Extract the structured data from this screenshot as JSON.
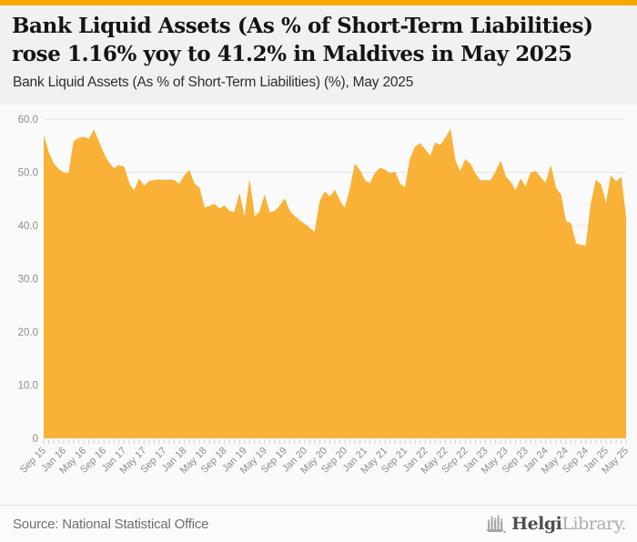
{
  "header": {
    "title_line1": "Bank Liquid Assets (As % of Short-Term Liabilities)",
    "title_line2": "rose 1.16% yoy to 41.2% in Maldives in May 2025",
    "subtitle": "Bank Liquid Assets (As % of Short-Term Liabilities) (%), May 2025"
  },
  "footer": {
    "source": "Source: National Statistical Office",
    "logo_bold": "Helgi",
    "logo_light": "Library."
  },
  "colors": {
    "accent_bar": "#F7A800",
    "area_fill": "#F9B237",
    "area_stroke": "#F3A81F",
    "grid": "#E5E5E5",
    "axis_text": "#8C8C8C",
    "tick_mark": "#C9D2DE",
    "plot_bg": "#FAFAFA"
  },
  "chart_data": {
    "type": "area",
    "title": "Bank Liquid Assets (As % of Short-Term Liabilities) (%), May 2025",
    "xlabel": "",
    "ylabel": "",
    "unit": "%",
    "grid": true,
    "legend": "none",
    "freq": "monthly",
    "x_start": "Sep 2015",
    "x_end": "May 2025",
    "ylim": [
      0,
      60
    ],
    "yticks": [
      0,
      10,
      20,
      30,
      40,
      50,
      60
    ],
    "ytick_labels": [
      "0",
      "10.0",
      "20.0",
      "30.0",
      "40.0",
      "50.0",
      "60.0"
    ],
    "x_major_label_every_n_months": 4,
    "x_major_labels": [
      "Sep 15",
      "Jan 16",
      "May 16",
      "Sep 16",
      "Jan 17",
      "May 17",
      "Sep 17",
      "Jan 18",
      "May 18",
      "Sep 18",
      "Jan 19",
      "May 19",
      "Sep 19",
      "Jan 20",
      "May 20",
      "Sep 20",
      "Jan 21",
      "May 21",
      "Sep 21",
      "Jan 22",
      "May 22",
      "Sep 22",
      "Jan 23",
      "May 23",
      "Sep 23",
      "Jan 24",
      "May 24",
      "Sep 24",
      "Jan 25",
      "May 25"
    ],
    "latest_point": {
      "label": "May 25",
      "value": 41.2
    },
    "yoy_change_pct": 1.16,
    "values": [
      56.9,
      53.6,
      51.6,
      50.5,
      49.9,
      49.8,
      55.8,
      56.4,
      56.6,
      56.2,
      57.9,
      55.7,
      53.4,
      51.8,
      50.7,
      51.3,
      51.0,
      47.9,
      46.4,
      48.7,
      47.4,
      48.3,
      48.5,
      48.6,
      48.5,
      48.6,
      48.5,
      47.7,
      49.3,
      50.4,
      47.8,
      47.1,
      43.3,
      43.6,
      44.0,
      43.1,
      43.7,
      42.7,
      42.5,
      45.9,
      41.3,
      48.4,
      41.6,
      42.5,
      45.6,
      42.4,
      42.7,
      43.6,
      45.0,
      42.7,
      41.7,
      40.9,
      40.2,
      39.5,
      38.6,
      44.5,
      46.3,
      45.4,
      46.6,
      44.6,
      43.2,
      46.8,
      51.5,
      50.3,
      48.4,
      47.9,
      49.8,
      50.8,
      50.4,
      49.8,
      50.0,
      47.8,
      47.1,
      52.5,
      54.8,
      55.4,
      54.2,
      53.0,
      55.5,
      55.1,
      56.4,
      58.0,
      52.1,
      50.1,
      52.4,
      51.5,
      49.6,
      48.4,
      48.5,
      48.4,
      50.0,
      52.0,
      49.2,
      48.1,
      46.5,
      48.7,
      47.2,
      49.9,
      50.2,
      49.0,
      47.9,
      51.2,
      47.0,
      45.8,
      40.7,
      40.4,
      36.6,
      36.3,
      36.2,
      44.0,
      48.5,
      47.7,
      43.9,
      49.3,
      48.2,
      49.0,
      41.2
    ]
  }
}
